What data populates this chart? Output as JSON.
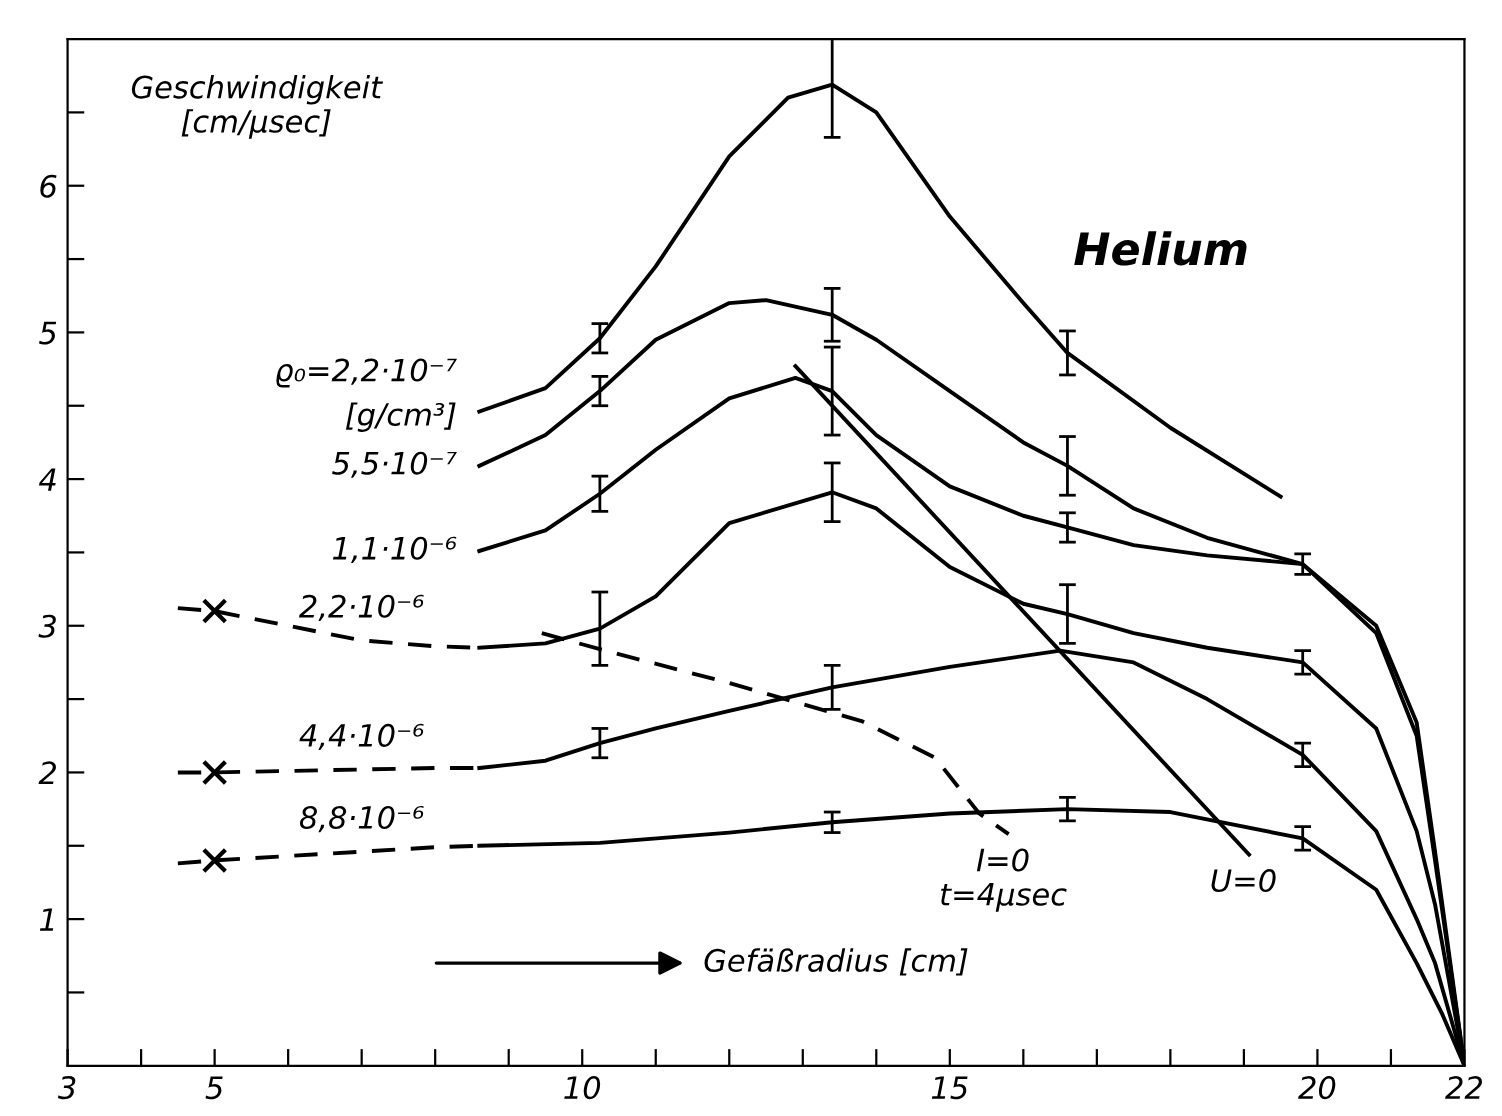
{
  "chart_data": {
    "type": "line",
    "title": "Helium",
    "xlabel": "Gefäßradius [cm]",
    "ylabel": "Geschwindigkeit\n[cm/µsec]",
    "annotations": [
      "[g/cm³]"
    ],
    "xlim": [
      3,
      22
    ],
    "ylim": [
      0,
      7
    ],
    "xticks": [
      3,
      {
        "value": 4,
        "label": null
      },
      5,
      {
        "value": 6,
        "label": null
      },
      {
        "value": 7,
        "label": null
      },
      {
        "value": 8,
        "label": null
      },
      {
        "value": 9,
        "label": null
      },
      10,
      {
        "value": 11,
        "label": null
      },
      {
        "value": 12,
        "label": null
      },
      {
        "value": 13,
        "label": null
      },
      {
        "value": 14,
        "label": null
      },
      15,
      {
        "value": 16,
        "label": null
      },
      {
        "value": 17,
        "label": null
      },
      {
        "value": 18,
        "label": null
      },
      {
        "value": 19,
        "label": null
      },
      20,
      {
        "value": 21,
        "label": null
      },
      22
    ],
    "yticks": [
      {
        "value": 0.5,
        "label": null
      },
      1,
      {
        "value": 1.5,
        "label": null
      },
      2,
      {
        "value": 2.5,
        "label": null
      },
      3,
      {
        "value": 3.5,
        "label": null
      },
      4,
      {
        "value": 4.5,
        "label": null
      },
      5,
      {
        "value": 5.5,
        "label": null
      },
      6,
      {
        "value": 6.5,
        "label": null
      }
    ],
    "grid": false,
    "legend": false,
    "marker": "none",
    "series": [
      {
        "name": "ϱ₀=2,2·10⁻⁷",
        "color": "#000000",
        "line_style": "solid",
        "x": [
          8.6,
          9.5,
          10.24,
          11,
          12,
          12.8,
          13.4,
          14,
          15,
          16,
          16.6,
          18,
          19.5
        ],
        "values": [
          4.46,
          4.62,
          4.96,
          5.45,
          6.2,
          6.6,
          6.69,
          6.5,
          5.79,
          5.2,
          4.86,
          4.35,
          3.88
        ],
        "errors": [
          null,
          null,
          0.1,
          null,
          null,
          null,
          0.36,
          null,
          null,
          null,
          0.15,
          null,
          null
        ]
      },
      {
        "name": "5,5·10⁻⁷",
        "color": "#000000",
        "line_style": "solid",
        "x": [
          8.6,
          9.5,
          10.24,
          11,
          12,
          12.5,
          13.4,
          14,
          15,
          16,
          16.6,
          17.5,
          18.5,
          19.8,
          20.8,
          21.35,
          21.6,
          22
        ],
        "values": [
          4.09,
          4.3,
          4.6,
          4.95,
          5.2,
          5.22,
          5.12,
          4.95,
          4.6,
          4.25,
          4.09,
          3.8,
          3.6,
          3.42,
          3.0,
          2.34,
          1.46,
          0
        ],
        "errors": [
          null,
          null,
          0.1,
          null,
          null,
          null,
          0.18,
          null,
          null,
          null,
          0.2,
          null,
          null,
          0.07,
          null,
          null,
          null,
          null
        ]
      },
      {
        "name": "1,1·10⁻⁶",
        "color": "#000000",
        "line_style": "solid",
        "x": [
          8.6,
          9.5,
          10.24,
          11,
          12,
          12.9,
          13.4,
          14,
          15,
          16,
          16.6,
          17.5,
          18.5,
          19.8,
          20.8,
          21.35,
          21.6,
          22
        ],
        "values": [
          3.51,
          3.65,
          3.9,
          4.2,
          4.55,
          4.69,
          4.6,
          4.3,
          3.95,
          3.75,
          3.67,
          3.55,
          3.48,
          3.42,
          2.95,
          2.25,
          1.4,
          0
        ],
        "errors": [
          null,
          null,
          0.12,
          null,
          null,
          null,
          0.3,
          null,
          null,
          null,
          0.1,
          null,
          null,
          null,
          null,
          null,
          null,
          null
        ]
      },
      {
        "name": "2,2·10⁻⁶",
        "color": "#000000",
        "line_style": "dashed",
        "x": [
          4.5,
          5,
          6,
          7,
          8,
          8.6
        ],
        "values": [
          3.12,
          3.1,
          3.0,
          2.9,
          2.86,
          2.85
        ]
      },
      {
        "color": "#000000",
        "line_style": "solid",
        "x": [
          8.6,
          9.5,
          10.24,
          11,
          12,
          13.4,
          14,
          15,
          16,
          16.6,
          17.5,
          18.5,
          19.8,
          20.8,
          21.35,
          21.6,
          22
        ],
        "values": [
          2.85,
          2.88,
          2.98,
          3.2,
          3.7,
          3.91,
          3.8,
          3.4,
          3.15,
          3.08,
          2.95,
          2.85,
          2.75,
          2.3,
          1.6,
          1.1,
          0
        ],
        "errors": [
          null,
          null,
          0.25,
          null,
          null,
          0.2,
          null,
          null,
          null,
          0.2,
          null,
          null,
          0.08,
          null,
          null,
          null,
          null
        ]
      },
      {
        "name": "4,4·10⁻⁶",
        "color": "#000000",
        "line_style": "dashed",
        "x": [
          4.5,
          5,
          6,
          7,
          8,
          8.6
        ],
        "values": [
          2.0,
          2.0,
          2.01,
          2.02,
          2.03,
          2.03
        ]
      },
      {
        "color": "#000000",
        "line_style": "solid",
        "x": [
          8.6,
          9.5,
          10.24,
          11,
          12,
          13.4,
          15,
          16.5,
          17.5,
          18.5,
          19.8,
          20.8,
          21.35,
          21.6,
          22
        ],
        "values": [
          2.03,
          2.08,
          2.2,
          2.3,
          2.42,
          2.58,
          2.72,
          2.83,
          2.75,
          2.5,
          2.12,
          1.6,
          1.0,
          0.7,
          0
        ],
        "errors": [
          null,
          null,
          0.1,
          null,
          null,
          0.15,
          null,
          null,
          null,
          null,
          0.08,
          null,
          null,
          null,
          null
        ]
      },
      {
        "name": "8,8·10⁻⁶",
        "color": "#000000",
        "line_style": "dashed",
        "x": [
          4.5,
          5,
          6,
          7,
          8,
          8.6
        ],
        "values": [
          1.38,
          1.4,
          1.43,
          1.46,
          1.49,
          1.5
        ]
      },
      {
        "color": "#000000",
        "line_style": "solid",
        "x": [
          8.6,
          10.24,
          12,
          13.4,
          15,
          16.6,
          18,
          19.8,
          20.8,
          21.35,
          21.7,
          22
        ],
        "values": [
          1.5,
          1.52,
          1.59,
          1.66,
          1.72,
          1.75,
          1.73,
          1.55,
          1.2,
          0.7,
          0.35,
          0
        ],
        "errors": [
          null,
          null,
          null,
          0.07,
          null,
          0.08,
          null,
          0.08,
          null,
          null,
          null,
          null
        ]
      },
      {
        "type": "scatter",
        "color": "#000000",
        "marker": "cross",
        "x": [
          5,
          5,
          5
        ],
        "values": [
          3.1,
          2.0,
          1.4
        ]
      },
      {
        "name": "I=0\nt=4µsec",
        "color": "#000000",
        "line_style": "dashed",
        "x": [
          9.45,
          10.24,
          12,
          13.8,
          14.8,
          15.4,
          15.8
        ],
        "values": [
          2.95,
          2.84,
          2.61,
          2.35,
          2.1,
          1.72,
          1.58
        ]
      },
      {
        "name": "U=0",
        "color": "#000000",
        "line_style": "solid",
        "x": [
          12.9,
          19.07
        ],
        "values": [
          4.77,
          1.44
        ]
      }
    ]
  }
}
